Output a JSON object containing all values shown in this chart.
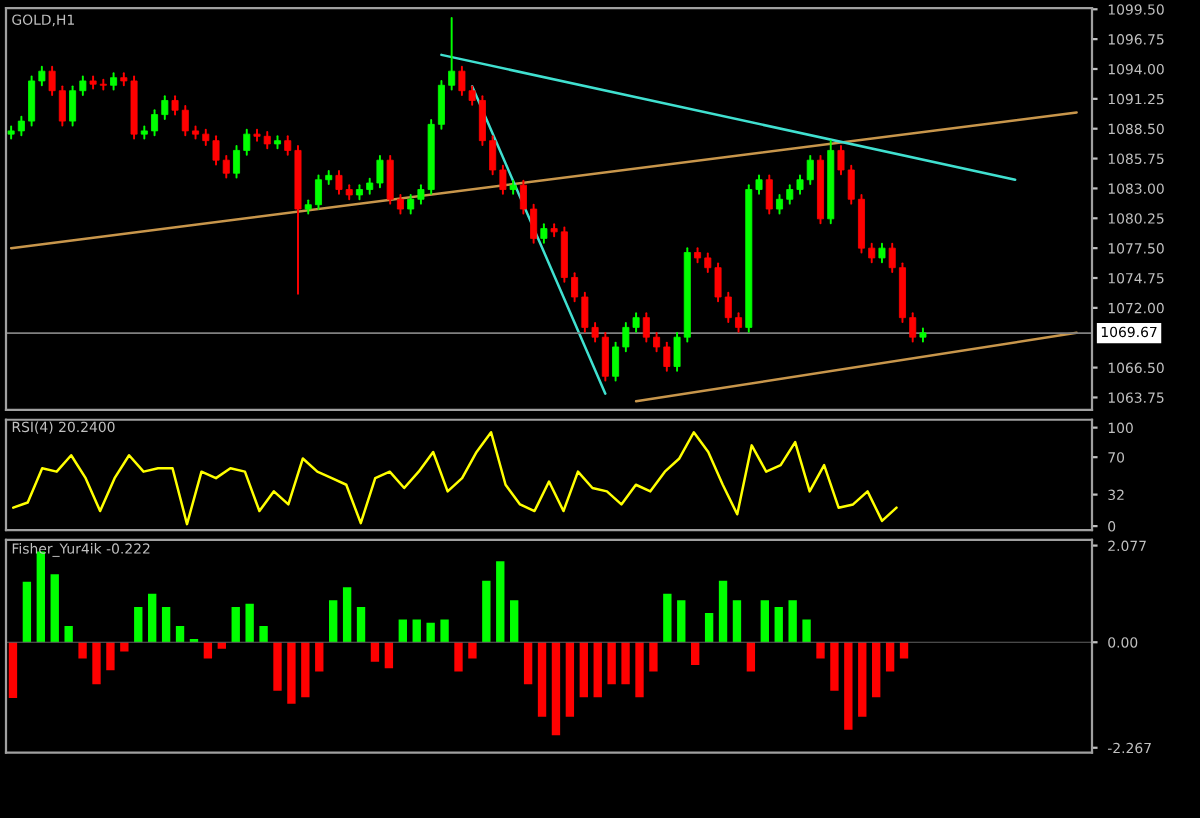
{
  "chart_data": [
    {
      "type": "candlestick",
      "title": "GOLD,H1",
      "categories": [
        null,
        null,
        null,
        null,
        null,
        null,
        null,
        null,
        null,
        null,
        null,
        null,
        null,
        null,
        null,
        null,
        null,
        null,
        null,
        null,
        null,
        null,
        null,
        null,
        null,
        null,
        null,
        null,
        null,
        null,
        null,
        null,
        null,
        null,
        null,
        null,
        null,
        null,
        null,
        null,
        null,
        null,
        null,
        null,
        null,
        null,
        null,
        null,
        null,
        null,
        null,
        null,
        null,
        null,
        null,
        null,
        null,
        null,
        null,
        null,
        null,
        null,
        null,
        null,
        null,
        null,
        null,
        null,
        null,
        null,
        null,
        null,
        null,
        null,
        null,
        null,
        null,
        null,
        null,
        null,
        null,
        null,
        null,
        null,
        null,
        null,
        null,
        null,
        null,
        null,
        null,
        null,
        null,
        null,
        null,
        null,
        null,
        null,
        null,
        null,
        null,
        null,
        null,
        null,
        null,
        null
      ],
      "ohlc": [
        [
          1088.0,
          1088.7,
          1087.6,
          1088.3
        ],
        [
          1088.3,
          1089.6,
          1087.9,
          1089.2
        ],
        [
          1089.2,
          1093.3,
          1088.8,
          1092.9
        ],
        [
          1092.9,
          1094.2,
          1092.5,
          1093.8
        ],
        [
          1093.8,
          1094.2,
          1091.6,
          1092.0
        ],
        [
          1092.0,
          1092.4,
          1088.8,
          1089.2
        ],
        [
          1089.2,
          1092.4,
          1088.8,
          1092.0
        ],
        [
          1092.0,
          1093.3,
          1091.6,
          1092.9
        ],
        [
          1092.9,
          1093.3,
          1092.2,
          1092.6
        ],
        [
          1092.6,
          1093.0,
          1092.1,
          1092.5
        ],
        [
          1092.5,
          1093.6,
          1092.1,
          1093.2
        ],
        [
          1093.2,
          1093.6,
          1092.5,
          1092.9
        ],
        [
          1092.9,
          1093.3,
          1087.6,
          1088.0
        ],
        [
          1088.0,
          1088.7,
          1087.6,
          1088.3
        ],
        [
          1088.3,
          1090.2,
          1087.9,
          1089.8
        ],
        [
          1089.8,
          1091.5,
          1089.4,
          1091.1
        ],
        [
          1091.1,
          1091.5,
          1089.8,
          1090.2
        ],
        [
          1090.2,
          1090.6,
          1087.9,
          1088.3
        ],
        [
          1088.3,
          1088.7,
          1087.6,
          1088.0
        ],
        [
          1088.0,
          1088.4,
          1087.0,
          1087.4
        ],
        [
          1087.4,
          1087.8,
          1085.2,
          1085.6
        ],
        [
          1085.6,
          1086.0,
          1084.0,
          1084.4
        ],
        [
          1084.4,
          1086.9,
          1084.0,
          1086.5
        ],
        [
          1086.5,
          1088.4,
          1086.1,
          1088.0
        ],
        [
          1088.0,
          1088.4,
          1087.4,
          1087.8
        ],
        [
          1087.8,
          1088.2,
          1086.7,
          1087.1
        ],
        [
          1087.1,
          1087.8,
          1086.7,
          1087.4
        ],
        [
          1087.4,
          1087.8,
          1086.1,
          1086.5
        ],
        [
          1086.5,
          1086.9,
          1073.3,
          1081.1
        ],
        [
          1081.1,
          1081.9,
          1080.7,
          1081.5
        ],
        [
          1081.5,
          1084.2,
          1081.1,
          1083.8
        ],
        [
          1083.8,
          1084.6,
          1083.4,
          1084.2
        ],
        [
          1084.2,
          1084.6,
          1082.5,
          1082.9
        ],
        [
          1082.9,
          1083.3,
          1082.0,
          1082.4
        ],
        [
          1082.4,
          1083.3,
          1082.0,
          1082.9
        ],
        [
          1082.9,
          1083.9,
          1082.5,
          1083.5
        ],
        [
          1083.5,
          1086.0,
          1083.1,
          1085.6
        ],
        [
          1085.6,
          1086.0,
          1081.6,
          1082.0
        ],
        [
          1082.0,
          1082.4,
          1080.7,
          1081.1
        ],
        [
          1081.1,
          1082.4,
          1080.7,
          1082.0
        ],
        [
          1082.0,
          1083.3,
          1081.6,
          1082.9
        ],
        [
          1082.9,
          1089.3,
          1082.5,
          1088.9
        ],
        [
          1088.9,
          1092.9,
          1088.5,
          1092.5
        ],
        [
          1092.5,
          1098.7,
          1092.1,
          1093.8
        ],
        [
          1093.8,
          1094.2,
          1091.6,
          1092.0
        ],
        [
          1092.0,
          1092.4,
          1090.7,
          1091.1
        ],
        [
          1091.1,
          1091.5,
          1087.0,
          1087.4
        ],
        [
          1087.4,
          1087.8,
          1084.3,
          1084.7
        ],
        [
          1084.7,
          1085.1,
          1082.5,
          1082.9
        ],
        [
          1082.9,
          1083.7,
          1082.5,
          1083.3
        ],
        [
          1083.3,
          1083.7,
          1080.7,
          1081.1
        ],
        [
          1081.1,
          1081.5,
          1078.0,
          1078.4
        ],
        [
          1078.4,
          1079.7,
          1078.0,
          1079.3
        ],
        [
          1079.3,
          1079.7,
          1078.6,
          1079.0
        ],
        [
          1079.0,
          1079.4,
          1074.4,
          1074.8
        ],
        [
          1074.8,
          1075.2,
          1072.6,
          1073.0
        ],
        [
          1073.0,
          1073.4,
          1069.8,
          1070.2
        ],
        [
          1070.2,
          1070.6,
          1068.9,
          1069.3
        ],
        [
          1069.3,
          1069.7,
          1065.3,
          1065.7
        ],
        [
          1065.7,
          1068.8,
          1065.3,
          1068.4
        ],
        [
          1068.4,
          1070.6,
          1068.0,
          1070.2
        ],
        [
          1070.2,
          1071.5,
          1069.8,
          1071.1
        ],
        [
          1071.1,
          1071.5,
          1068.9,
          1069.3
        ],
        [
          1069.3,
          1069.7,
          1068.0,
          1068.4
        ],
        [
          1068.4,
          1068.8,
          1066.2,
          1066.6
        ],
        [
          1066.6,
          1069.7,
          1066.2,
          1069.3
        ],
        [
          1069.3,
          1077.5,
          1068.9,
          1077.1
        ],
        [
          1077.1,
          1077.5,
          1076.2,
          1076.6
        ],
        [
          1076.6,
          1077.0,
          1075.3,
          1075.7
        ],
        [
          1075.7,
          1076.1,
          1072.6,
          1073.0
        ],
        [
          1073.0,
          1073.4,
          1070.7,
          1071.1
        ],
        [
          1071.1,
          1071.5,
          1069.8,
          1070.2
        ],
        [
          1070.2,
          1083.3,
          1069.8,
          1082.9
        ],
        [
          1082.9,
          1084.2,
          1082.5,
          1083.8
        ],
        [
          1083.8,
          1084.2,
          1080.7,
          1081.1
        ],
        [
          1081.1,
          1082.4,
          1080.7,
          1082.0
        ],
        [
          1082.0,
          1083.3,
          1081.6,
          1082.9
        ],
        [
          1082.9,
          1084.2,
          1082.5,
          1083.8
        ],
        [
          1083.8,
          1086.0,
          1083.4,
          1085.6
        ],
        [
          1085.6,
          1086.0,
          1079.8,
          1080.2
        ],
        [
          1080.2,
          1087.4,
          1079.8,
          1086.5
        ],
        [
          1086.5,
          1086.9,
          1084.3,
          1084.7
        ],
        [
          1084.7,
          1085.1,
          1081.6,
          1082.0
        ],
        [
          1082.0,
          1082.4,
          1077.1,
          1077.5
        ],
        [
          1077.5,
          1077.9,
          1076.2,
          1076.6
        ],
        [
          1076.6,
          1077.9,
          1076.2,
          1077.5
        ],
        [
          1077.5,
          1077.9,
          1075.3,
          1075.7
        ],
        [
          1075.7,
          1076.1,
          1070.7,
          1071.1
        ],
        [
          1071.1,
          1071.5,
          1068.9,
          1069.3
        ],
        [
          1069.3,
          1070.1,
          1068.9,
          1069.7
        ],
        null,
        null,
        null,
        null,
        null,
        null,
        null,
        null,
        null,
        null,
        null,
        null,
        null,
        null,
        null,
        null
      ],
      "series": [
        {
          "type": "line",
          "color": "#c8964b",
          "values": [
            1077.5,
            null,
            null,
            null,
            null,
            null,
            null,
            null,
            null,
            null,
            null,
            null,
            null,
            null,
            null,
            null,
            null,
            null,
            null,
            null,
            null,
            null,
            null,
            null,
            null,
            null,
            null,
            null,
            null,
            null,
            null,
            null,
            null,
            null,
            null,
            null,
            null,
            null,
            null,
            null,
            null,
            null,
            null,
            null,
            null,
            null,
            null,
            null,
            null,
            null,
            null,
            null,
            null,
            null,
            null,
            null,
            null,
            null,
            null,
            null,
            null,
            null,
            null,
            null,
            null,
            null,
            null,
            null,
            null,
            null,
            null,
            null,
            null,
            null,
            null,
            null,
            null,
            null,
            null,
            null,
            null,
            null,
            null,
            null,
            null,
            null,
            null,
            null,
            null,
            null,
            null,
            null,
            null,
            null,
            null,
            null,
            null,
            null,
            null,
            null,
            null,
            null,
            null,
            null,
            1090.0,
            null
          ]
        },
        {
          "type": "line",
          "color": "#40e0d0",
          "values": [
            null,
            null,
            null,
            null,
            null,
            null,
            null,
            null,
            null,
            null,
            null,
            null,
            null,
            null,
            null,
            null,
            null,
            null,
            null,
            null,
            null,
            null,
            null,
            null,
            null,
            null,
            null,
            null,
            null,
            null,
            null,
            null,
            null,
            null,
            null,
            null,
            null,
            null,
            null,
            null,
            null,
            null,
            1095.3,
            null,
            null,
            null,
            null,
            null,
            null,
            null,
            null,
            null,
            null,
            null,
            null,
            null,
            null,
            null,
            null,
            null,
            null,
            null,
            null,
            null,
            null,
            null,
            null,
            null,
            null,
            null,
            null,
            null,
            null,
            null,
            null,
            null,
            null,
            null,
            null,
            null,
            null,
            null,
            null,
            null,
            null,
            null,
            null,
            null,
            null,
            null,
            null,
            null,
            null,
            null,
            null,
            null,
            null,
            null,
            1083.8,
            null,
            null,
            null,
            null,
            null,
            null,
            null
          ]
        },
        {
          "type": "line",
          "color": "#40e0d0",
          "values": [
            null,
            null,
            null,
            null,
            null,
            null,
            null,
            null,
            null,
            null,
            null,
            null,
            null,
            null,
            null,
            null,
            null,
            null,
            null,
            null,
            null,
            null,
            null,
            null,
            null,
            null,
            null,
            null,
            null,
            null,
            null,
            null,
            null,
            null,
            null,
            null,
            null,
            null,
            null,
            null,
            null,
            null,
            null,
            null,
            null,
            1092.4,
            null,
            null,
            null,
            null,
            null,
            null,
            null,
            null,
            null,
            null,
            null,
            null,
            1064.1,
            null,
            null,
            null,
            null,
            null,
            null,
            null,
            null,
            null,
            null,
            null,
            null,
            null,
            null,
            null,
            null,
            null,
            null,
            null,
            null,
            null,
            null,
            null,
            null,
            null,
            null,
            null,
            null,
            null,
            null,
            null,
            null,
            null,
            null,
            null,
            null,
            null,
            null,
            null,
            null,
            null,
            null,
            null,
            null,
            null,
            null,
            null
          ]
        },
        {
          "type": "line",
          "color": "#c8964b",
          "values": [
            null,
            null,
            null,
            null,
            null,
            null,
            null,
            null,
            null,
            null,
            null,
            null,
            null,
            null,
            null,
            null,
            null,
            null,
            null,
            null,
            null,
            null,
            null,
            null,
            null,
            null,
            null,
            null,
            null,
            null,
            null,
            null,
            null,
            null,
            null,
            null,
            null,
            null,
            null,
            null,
            null,
            null,
            null,
            null,
            null,
            null,
            null,
            null,
            null,
            null,
            null,
            null,
            null,
            null,
            null,
            null,
            null,
            null,
            null,
            null,
            null,
            1063.4,
            null,
            null,
            null,
            null,
            null,
            null,
            null,
            null,
            null,
            null,
            null,
            null,
            null,
            null,
            null,
            null,
            null,
            null,
            null,
            null,
            null,
            null,
            null,
            null,
            null,
            null,
            null,
            null,
            null,
            null,
            null,
            null,
            null,
            null,
            null,
            null,
            null,
            null,
            null,
            null,
            null,
            null,
            1069.7,
            null
          ]
        }
      ],
      "ylim": [
        1062.6,
        1099.6
      ],
      "yticks": [
        {
          "value": 1099.5,
          "label": "1099.50"
        },
        {
          "value": 1096.75,
          "label": "1096.75"
        },
        {
          "value": 1094.0,
          "label": "1094.00"
        },
        {
          "value": 1091.25,
          "label": "1091.25"
        },
        {
          "value": 1088.5,
          "label": "1088.50"
        },
        {
          "value": 1085.75,
          "label": "1085.75"
        },
        {
          "value": 1083.0,
          "label": "1083.00"
        },
        {
          "value": 1080.25,
          "label": "1080.25"
        },
        {
          "value": 1077.5,
          "label": "1077.50"
        },
        {
          "value": 1074.75,
          "label": "1074.75"
        },
        {
          "value": 1072.0,
          "label": "1072.00"
        },
        {
          "value": 1066.5,
          "label": "1066.50"
        },
        {
          "value": 1063.75,
          "label": "1063.75"
        }
      ],
      "ref_lines": [
        {
          "axis": "y",
          "value": 1069.67,
          "label": "1069.67",
          "color": "#808080"
        }
      ],
      "tick_labels": "y"
    },
    {
      "type": "line",
      "title": "RSI(4) 20.2400",
      "categories": [
        null,
        null,
        null,
        null,
        null,
        null,
        null,
        null,
        null,
        null,
        null,
        null,
        null,
        null,
        null,
        null,
        null,
        null,
        null,
        null,
        null,
        null,
        null,
        null,
        null,
        null,
        null,
        null,
        null,
        null,
        null,
        null,
        null,
        null,
        null,
        null,
        null,
        null,
        null,
        null,
        null,
        null,
        null,
        null,
        null,
        null,
        null,
        null,
        null,
        null,
        null,
        null,
        null,
        null,
        null,
        null,
        null,
        null,
        null,
        null,
        null,
        null,
        null,
        null,
        null,
        null,
        null,
        null,
        null,
        null,
        null,
        null,
        null,
        null,
        null
      ],
      "series": [
        {
          "color": "#ffff00",
          "values": [
            18.7,
            24,
            58.7,
            55.3,
            72,
            48.7,
            15.3,
            48.7,
            72,
            55.3,
            58.7,
            58.7,
            2,
            55.3,
            48.7,
            58.7,
            55.3,
            15.3,
            35.3,
            22,
            68.7,
            55.3,
            48.7,
            42,
            3,
            48.7,
            55.3,
            38.7,
            55.3,
            75.3,
            35.3,
            48.7,
            75.3,
            95.3,
            42,
            22,
            15.3,
            45.3,
            15.3,
            55.3,
            38.7,
            35.3,
            22,
            42,
            35.3,
            55.3,
            68.7,
            95.3,
            75.3,
            42,
            12,
            82,
            55.3,
            62,
            85.3,
            35.3,
            62,
            18.7,
            22,
            35.3,
            5.3,
            18.7,
            null,
            null,
            null,
            null,
            null,
            null,
            null,
            null,
            null,
            null,
            null,
            null,
            null
          ]
        }
      ],
      "ylim": [
        -4,
        108
      ],
      "yticks": [
        0,
        32,
        70,
        100
      ],
      "tick_labels": "y"
    },
    {
      "type": "bar",
      "title": "Fisher_Yur4ik -0.222",
      "categories": [
        null,
        null,
        null,
        null,
        null,
        null,
        null,
        null,
        null,
        null,
        null,
        null,
        null,
        null,
        null,
        null,
        null,
        null,
        null,
        null,
        null,
        null,
        null,
        null,
        null,
        null,
        null,
        null,
        null,
        null,
        null,
        null,
        null,
        null,
        null,
        null,
        null,
        null,
        null,
        null,
        null,
        null,
        null,
        null,
        null,
        null,
        null,
        null,
        null,
        null,
        null,
        null,
        null,
        null,
        null,
        null,
        null,
        null,
        null,
        null,
        null,
        null,
        null,
        null,
        null,
        null,
        null,
        null,
        null,
        null,
        null,
        null,
        null,
        null,
        null,
        null,
        null,
        null
      ],
      "values": [
        -1.2,
        1.3,
        1.95,
        1.46,
        0.35,
        -0.35,
        -0.9,
        -0.6,
        -0.2,
        0.76,
        1.04,
        0.76,
        0.35,
        0.07,
        -0.35,
        -0.14,
        0.76,
        0.83,
        0.35,
        -1.04,
        -1.32,
        -1.18,
        -0.63,
        0.9,
        1.18,
        0.76,
        -0.42,
        -0.56,
        0.49,
        0.49,
        0.42,
        0.49,
        -0.63,
        -0.35,
        1.32,
        1.74,
        0.9,
        -0.9,
        -1.6,
        -2.0,
        -1.6,
        -1.18,
        -1.18,
        -0.9,
        -0.9,
        -1.18,
        -0.63,
        1.04,
        0.9,
        -0.49,
        0.63,
        1.32,
        0.9,
        -0.63,
        0.9,
        0.76,
        0.9,
        0.49,
        -0.35,
        -1.04,
        -1.88,
        -1.6,
        -1.18,
        -0.63,
        -0.35,
        null,
        null,
        null,
        null,
        null,
        null,
        null,
        null,
        null,
        null,
        null,
        null,
        null
      ],
      "colors": [
        "#ff0000",
        "#00ff00",
        "#00ff00",
        "#00ff00",
        "#00ff00",
        "#ff0000",
        "#ff0000",
        "#ff0000",
        "#ff0000",
        "#00ff00",
        "#00ff00",
        "#00ff00",
        "#00ff00",
        "#00ff00",
        "#ff0000",
        "#ff0000",
        "#00ff00",
        "#00ff00",
        "#00ff00",
        "#ff0000",
        "#ff0000",
        "#ff0000",
        "#ff0000",
        "#00ff00",
        "#00ff00",
        "#00ff00",
        "#ff0000",
        "#ff0000",
        "#00ff00",
        "#00ff00",
        "#00ff00",
        "#00ff00",
        "#ff0000",
        "#ff0000",
        "#00ff00",
        "#00ff00",
        "#00ff00",
        "#ff0000",
        "#ff0000",
        "#ff0000",
        "#ff0000",
        "#ff0000",
        "#ff0000",
        "#ff0000",
        "#ff0000",
        "#ff0000",
        "#ff0000",
        "#00ff00",
        "#00ff00",
        "#ff0000",
        "#00ff00",
        "#00ff00",
        "#00ff00",
        "#ff0000",
        "#00ff00",
        "#00ff00",
        "#00ff00",
        "#00ff00",
        "#ff0000",
        "#ff0000",
        "#ff0000",
        "#ff0000",
        "#ff0000",
        "#ff0000",
        "#ff0000",
        null,
        null,
        null,
        null,
        null,
        null,
        null,
        null,
        null,
        null,
        null,
        null,
        null
      ],
      "ylim": [
        -2.37,
        2.2
      ],
      "yticks": [
        {
          "value": 2.077,
          "label": "2.077"
        },
        {
          "value": 0,
          "label": "0.00"
        },
        {
          "value": -2.267,
          "label": "-2.267"
        }
      ],
      "tick_labels": "y"
    }
  ]
}
